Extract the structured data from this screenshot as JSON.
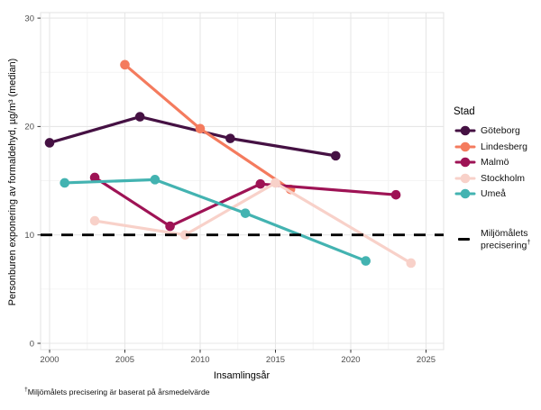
{
  "chart_data": {
    "type": "line",
    "title": "",
    "xlabel": "Insamlingsår",
    "ylabel": "Personburen exponering av formaldehyd, µg/m³ (median)",
    "xlim": [
      1999,
      2026
    ],
    "ylim": [
      0,
      30
    ],
    "x_ticks": [
      2000,
      2005,
      2010,
      2015,
      2020,
      2025
    ],
    "y_ticks": [
      0,
      10,
      20,
      30
    ],
    "grid": true,
    "legend_title": "Stad",
    "legend_position": "right",
    "series": [
      {
        "name": "Göteborg",
        "color": "#451143",
        "points": [
          [
            2000,
            18.5
          ],
          [
            2006,
            20.9
          ],
          [
            2012,
            18.9
          ],
          [
            2019,
            17.3
          ]
        ]
      },
      {
        "name": "Lindesberg",
        "color": "#f47b5e",
        "points": [
          [
            2005,
            25.7
          ],
          [
            2010,
            19.8
          ],
          [
            2016,
            14.2
          ]
        ]
      },
      {
        "name": "Malmö",
        "color": "#9e1355",
        "points": [
          [
            2003,
            15.3
          ],
          [
            2008,
            10.8
          ],
          [
            2014,
            14.7
          ],
          [
            2023,
            13.7
          ]
        ]
      },
      {
        "name": "Stockholm",
        "color": "#f8d1c9",
        "points": [
          [
            2003,
            11.3
          ],
          [
            2009,
            10.0
          ],
          [
            2015,
            14.8
          ],
          [
            2024,
            7.4
          ]
        ]
      },
      {
        "name": "Umeå",
        "color": "#43b3b1",
        "points": [
          [
            2001,
            14.8
          ],
          [
            2007,
            15.1
          ],
          [
            2013,
            12.0
          ],
          [
            2021,
            7.6
          ]
        ]
      }
    ],
    "reference_line": {
      "value": 10,
      "style": "dashed",
      "color": "#000000",
      "label_line1": "Miljömålets",
      "label_line2": "precisering",
      "label_sup": "†"
    }
  },
  "footnote": {
    "dagger": "†",
    "text": "Miljömålets precisering är baserat på årsmedelvärde"
  },
  "style_colors": {
    "grid_major": "#e7e7e7",
    "grid_minor": "#f3f3f3",
    "panel_border": "#e3e3e3",
    "tick_mark": "#333333",
    "tick_label": "#4d4d4d"
  }
}
